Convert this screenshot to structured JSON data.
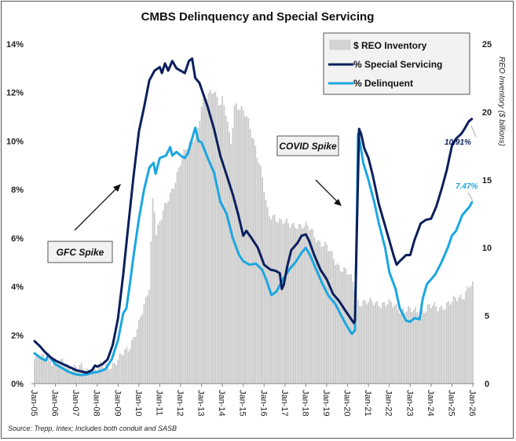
{
  "chart_data": {
    "type": "bar+line",
    "title": "CMBS Delinquency and Special Servicing",
    "xlabel": "",
    "ylabel_left": "",
    "ylabel_right": "REO Inventory ($ billions)",
    "x_ticks": [
      "Jan-05",
      "Jan-06",
      "Jan-07",
      "Jan-08",
      "Jan-09",
      "Jan-10",
      "Jan-11",
      "Jan-12",
      "Jan-13",
      "Jan-14",
      "Jan-15",
      "Jan-16",
      "Jan-17",
      "Jan-18",
      "Jan-19",
      "Jan-20",
      "Jan-21",
      "Jan-22",
      "Jan-23",
      "Jan-24",
      "Jan-25",
      "Jan-26"
    ],
    "y_left_ticks": [
      "0%",
      "2%",
      "4%",
      "6%",
      "8%",
      "10%",
      "12%",
      "14%"
    ],
    "y_left_range": [
      0,
      14
    ],
    "y_right_ticks": [
      "0",
      "5",
      "10",
      "15",
      "20",
      "25"
    ],
    "y_right_range": [
      0,
      25
    ],
    "x_range": [
      2005.0,
      2026.0
    ],
    "grid": false,
    "legend": {
      "position": "top-right",
      "entries": [
        {
          "label": "$ REO Inventory",
          "type": "bar",
          "color": "#c8c8c8"
        },
        {
          "label": "% Special Servicing",
          "type": "line",
          "color": "#0b1f5c"
        },
        {
          "label": "% Delinquent",
          "type": "line",
          "color": "#1aa7e0"
        }
      ]
    },
    "series": [
      {
        "name": "% Special Servicing",
        "axis": "left",
        "color": "#0b1f5c",
        "points": [
          [
            2005.0,
            1.75
          ],
          [
            2005.25,
            1.55
          ],
          [
            2005.5,
            1.3
          ],
          [
            2005.75,
            1.1
          ],
          [
            2006.0,
            0.95
          ],
          [
            2006.25,
            0.85
          ],
          [
            2006.5,
            0.75
          ],
          [
            2006.75,
            0.65
          ],
          [
            2007.0,
            0.55
          ],
          [
            2007.25,
            0.5
          ],
          [
            2007.5,
            0.45
          ],
          [
            2007.75,
            0.55
          ],
          [
            2007.9,
            0.75
          ],
          [
            2008.0,
            0.7
          ],
          [
            2008.25,
            0.8
          ],
          [
            2008.5,
            1.0
          ],
          [
            2008.75,
            1.6
          ],
          [
            2009.0,
            2.7
          ],
          [
            2009.25,
            4.5
          ],
          [
            2009.5,
            6.6
          ],
          [
            2009.75,
            8.6
          ],
          [
            2010.0,
            10.4
          ],
          [
            2010.25,
            11.4
          ],
          [
            2010.5,
            12.5
          ],
          [
            2010.75,
            12.9
          ],
          [
            2011.0,
            13.05
          ],
          [
            2011.1,
            12.8
          ],
          [
            2011.25,
            13.2
          ],
          [
            2011.4,
            12.9
          ],
          [
            2011.6,
            13.3
          ],
          [
            2011.8,
            13.0
          ],
          [
            2012.0,
            12.9
          ],
          [
            2012.2,
            12.8
          ],
          [
            2012.4,
            13.3
          ],
          [
            2012.55,
            13.4
          ],
          [
            2012.7,
            12.6
          ],
          [
            2012.9,
            12.4
          ],
          [
            2013.1,
            11.9
          ],
          [
            2013.3,
            11.4
          ],
          [
            2013.6,
            10.5
          ],
          [
            2013.9,
            9.4
          ],
          [
            2014.2,
            8.6
          ],
          [
            2014.5,
            7.8
          ],
          [
            2014.75,
            7.0
          ],
          [
            2015.0,
            6.1
          ],
          [
            2015.15,
            6.3
          ],
          [
            2015.4,
            6.0
          ],
          [
            2015.7,
            5.6
          ],
          [
            2016.0,
            4.9
          ],
          [
            2016.3,
            4.7
          ],
          [
            2016.55,
            4.65
          ],
          [
            2016.75,
            4.55
          ],
          [
            2016.85,
            3.9
          ],
          [
            2016.95,
            4.1
          ],
          [
            2017.1,
            4.8
          ],
          [
            2017.3,
            5.5
          ],
          [
            2017.6,
            5.8
          ],
          [
            2017.8,
            6.1
          ],
          [
            2018.0,
            6.15
          ],
          [
            2018.15,
            5.9
          ],
          [
            2018.4,
            5.3
          ],
          [
            2018.7,
            4.7
          ],
          [
            2019.0,
            4.3
          ],
          [
            2019.3,
            3.7
          ],
          [
            2019.6,
            3.4
          ],
          [
            2019.9,
            3.0
          ],
          [
            2020.1,
            2.75
          ],
          [
            2020.3,
            2.5
          ],
          [
            2020.35,
            2.6
          ],
          [
            2020.45,
            6.5
          ],
          [
            2020.55,
            10.5
          ],
          [
            2020.65,
            10.3
          ],
          [
            2020.8,
            9.7
          ],
          [
            2021.0,
            9.3
          ],
          [
            2021.2,
            8.6
          ],
          [
            2021.5,
            7.4
          ],
          [
            2021.8,
            6.5
          ],
          [
            2022.0,
            5.9
          ],
          [
            2022.2,
            5.3
          ],
          [
            2022.35,
            4.9
          ],
          [
            2022.5,
            5.05
          ],
          [
            2022.8,
            5.3
          ],
          [
            2023.0,
            5.3
          ],
          [
            2023.2,
            5.9
          ],
          [
            2023.5,
            6.6
          ],
          [
            2023.75,
            6.75
          ],
          [
            2024.0,
            6.8
          ],
          [
            2024.25,
            7.3
          ],
          [
            2024.5,
            8.0
          ],
          [
            2024.75,
            8.8
          ],
          [
            2025.0,
            9.8
          ],
          [
            2025.2,
            10.1
          ],
          [
            2025.45,
            10.3
          ],
          [
            2025.6,
            10.5
          ],
          [
            2025.8,
            10.8
          ],
          [
            2025.95,
            10.91
          ]
        ],
        "end_label": "10.91%"
      },
      {
        "name": "% Delinquent",
        "axis": "left",
        "color": "#1aa7e0",
        "points": [
          [
            2005.0,
            1.25
          ],
          [
            2005.3,
            1.05
          ],
          [
            2005.55,
            0.95
          ],
          [
            2005.65,
            1.2
          ],
          [
            2005.8,
            1.0
          ],
          [
            2006.0,
            0.8
          ],
          [
            2006.3,
            0.65
          ],
          [
            2006.6,
            0.5
          ],
          [
            2006.9,
            0.4
          ],
          [
            2007.2,
            0.35
          ],
          [
            2007.5,
            0.38
          ],
          [
            2007.8,
            0.45
          ],
          [
            2008.1,
            0.5
          ],
          [
            2008.4,
            0.6
          ],
          [
            2008.7,
            1.0
          ],
          [
            2009.0,
            1.8
          ],
          [
            2009.25,
            2.9
          ],
          [
            2009.4,
            3.1
          ],
          [
            2009.55,
            4.0
          ],
          [
            2009.75,
            5.3
          ],
          [
            2010.0,
            6.8
          ],
          [
            2010.25,
            8.0
          ],
          [
            2010.5,
            8.9
          ],
          [
            2010.7,
            9.1
          ],
          [
            2010.8,
            8.65
          ],
          [
            2011.0,
            9.3
          ],
          [
            2011.3,
            9.4
          ],
          [
            2011.5,
            9.75
          ],
          [
            2011.6,
            9.4
          ],
          [
            2011.8,
            9.55
          ],
          [
            2012.0,
            9.4
          ],
          [
            2012.2,
            9.3
          ],
          [
            2012.35,
            9.5
          ],
          [
            2012.5,
            9.95
          ],
          [
            2012.7,
            10.55
          ],
          [
            2012.85,
            10.0
          ],
          [
            2013.0,
            9.95
          ],
          [
            2013.3,
            9.3
          ],
          [
            2013.6,
            8.7
          ],
          [
            2013.9,
            7.5
          ],
          [
            2014.2,
            7.0
          ],
          [
            2014.5,
            6.0
          ],
          [
            2014.8,
            5.3
          ],
          [
            2015.0,
            5.05
          ],
          [
            2015.3,
            4.9
          ],
          [
            2015.6,
            4.95
          ],
          [
            2015.9,
            4.7
          ],
          [
            2016.1,
            4.3
          ],
          [
            2016.35,
            3.65
          ],
          [
            2016.6,
            3.8
          ],
          [
            2016.9,
            4.3
          ],
          [
            2017.2,
            4.7
          ],
          [
            2017.5,
            5.0
          ],
          [
            2017.8,
            5.4
          ],
          [
            2018.0,
            5.6
          ],
          [
            2018.2,
            5.3
          ],
          [
            2018.5,
            4.7
          ],
          [
            2018.8,
            4.1
          ],
          [
            2019.1,
            3.6
          ],
          [
            2019.4,
            3.3
          ],
          [
            2019.7,
            2.8
          ],
          [
            2019.95,
            2.4
          ],
          [
            2020.2,
            2.05
          ],
          [
            2020.35,
            2.2
          ],
          [
            2020.45,
            7.0
          ],
          [
            2020.5,
            10.3
          ],
          [
            2020.6,
            9.9
          ],
          [
            2020.75,
            9.1
          ],
          [
            2021.0,
            8.4
          ],
          [
            2021.3,
            7.4
          ],
          [
            2021.5,
            6.6
          ],
          [
            2021.8,
            5.6
          ],
          [
            2022.0,
            4.6
          ],
          [
            2022.3,
            3.9
          ],
          [
            2022.5,
            3.1
          ],
          [
            2022.8,
            2.6
          ],
          [
            2023.0,
            2.55
          ],
          [
            2023.2,
            2.7
          ],
          [
            2023.45,
            2.65
          ],
          [
            2023.6,
            3.5
          ],
          [
            2023.8,
            4.1
          ],
          [
            2024.0,
            4.3
          ],
          [
            2024.2,
            4.5
          ],
          [
            2024.5,
            5.0
          ],
          [
            2024.8,
            5.6
          ],
          [
            2025.0,
            6.1
          ],
          [
            2025.2,
            6.3
          ],
          [
            2025.5,
            6.95
          ],
          [
            2025.7,
            7.15
          ],
          [
            2025.85,
            7.3
          ],
          [
            2025.95,
            7.47
          ]
        ],
        "end_label": "7.47%"
      },
      {
        "name": "$ REO Inventory",
        "axis": "right",
        "color": "#c8c8c8",
        "points": [
          [
            2005.0,
            1.8
          ],
          [
            2005.5,
            1.9
          ],
          [
            2006.0,
            1.6
          ],
          [
            2006.5,
            1.4
          ],
          [
            2007.0,
            1.2
          ],
          [
            2007.5,
            1.0
          ],
          [
            2008.0,
            1.1
          ],
          [
            2008.5,
            1.3
          ],
          [
            2009.0,
            1.7
          ],
          [
            2009.5,
            2.6
          ],
          [
            2010.0,
            4.4
          ],
          [
            2010.3,
            5.8
          ],
          [
            2010.5,
            7.2
          ],
          [
            2010.7,
            15.0
          ],
          [
            2010.8,
            11.0
          ],
          [
            2011.0,
            11.8
          ],
          [
            2011.5,
            14.0
          ],
          [
            2012.0,
            16.2
          ],
          [
            2012.5,
            18.0
          ],
          [
            2012.8,
            18.5
          ],
          [
            2013.0,
            20.3
          ],
          [
            2013.3,
            21.2
          ],
          [
            2013.6,
            21.8
          ],
          [
            2013.9,
            20.5
          ],
          [
            2014.0,
            20.8
          ],
          [
            2014.2,
            19.6
          ],
          [
            2014.4,
            17.5
          ],
          [
            2014.6,
            20.8
          ],
          [
            2014.9,
            20.2
          ],
          [
            2015.2,
            19.4
          ],
          [
            2015.5,
            18.0
          ],
          [
            2015.8,
            16.2
          ],
          [
            2016.0,
            14.2
          ],
          [
            2016.2,
            12.2
          ],
          [
            2016.5,
            12.4
          ],
          [
            2016.9,
            11.9
          ],
          [
            2017.2,
            11.6
          ],
          [
            2017.6,
            11.8
          ],
          [
            2018.0,
            11.5
          ],
          [
            2018.3,
            11.2
          ],
          [
            2018.6,
            10.6
          ],
          [
            2019.0,
            10.0
          ],
          [
            2019.3,
            9.3
          ],
          [
            2019.6,
            8.7
          ],
          [
            2020.0,
            8.1
          ],
          [
            2020.3,
            7.3
          ],
          [
            2020.5,
            6.1
          ],
          [
            2021.0,
            5.9
          ],
          [
            2021.5,
            6.0
          ],
          [
            2022.0,
            5.8
          ],
          [
            2022.5,
            5.6
          ],
          [
            2023.0,
            5.3
          ],
          [
            2023.5,
            5.4
          ],
          [
            2024.0,
            5.6
          ],
          [
            2024.5,
            5.7
          ],
          [
            2025.0,
            5.9
          ],
          [
            2025.3,
            6.4
          ],
          [
            2025.6,
            6.6
          ],
          [
            2025.85,
            7.2
          ],
          [
            2026.0,
            7.1
          ]
        ]
      }
    ],
    "annotations": [
      {
        "text": "GFC Spike",
        "target_x": "Jan-09",
        "arrow": "up-right"
      },
      {
        "text": "COVID Spike",
        "target_x": "Jan-20",
        "arrow": "down-right"
      }
    ],
    "source": "Source: Trepp, Intex; Includes both conduit and SASB"
  }
}
